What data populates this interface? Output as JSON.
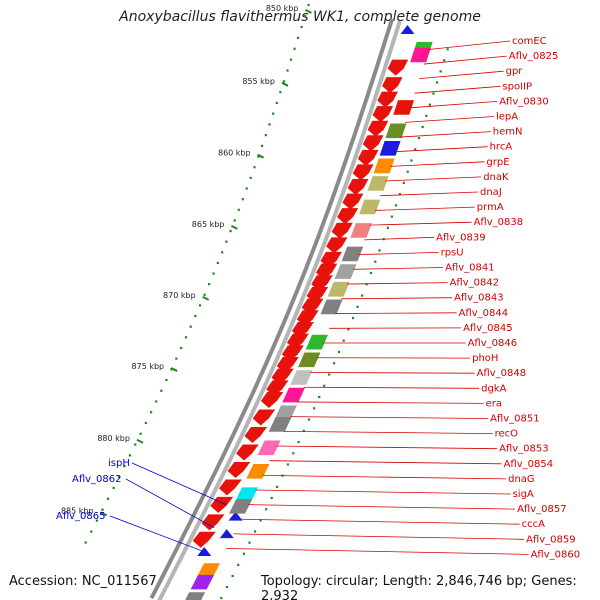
{
  "title": "Anoxybacillus flavithermus WK1, complete genome",
  "footer": {
    "accession": "Accession: NC_011567",
    "topology": "Topology: circular; Length: 2,846,746 bp; Genes: 2,932"
  },
  "colors": {
    "gene_forward": "#e8120c",
    "gene_reverse": "#1a1ae0",
    "label_right": "#d40000",
    "label_left": "#0000cc",
    "scale_dots": "#1a8a1a",
    "backbone": "#8a8a8a"
  },
  "scale_ticks": [
    "850 kbp",
    "855 kbp",
    "860 kbp",
    "865 kbp",
    "870 kbp",
    "875 kbp",
    "880 kbp",
    "885 kbp"
  ],
  "right_labels": [
    "comEC",
    "Aflv_0825",
    "gpr",
    "spoIIP",
    "Aflv_0830",
    "lepA",
    "hemN",
    "hrcA",
    "grpE",
    "dnaK",
    "dnaJ",
    "prmA",
    "Aflv_0838",
    "Aflv_0839",
    "rpsU",
    "Aflv_0841",
    "Aflv_0842",
    "Aflv_0843",
    "Aflv_0844",
    "Aflv_0845",
    "Aflv_0846",
    "phoH",
    "Aflv_0848",
    "dgkA",
    "era",
    "Aflv_0851",
    "recO",
    "Aflv_0853",
    "Aflv_0854",
    "dnaG",
    "sigA",
    "Aflv_0857",
    "cccA",
    "Aflv_0859",
    "Aflv_0860"
  ],
  "left_labels": [
    "ispH",
    "Aflv_0862",
    "Aflv_0865"
  ]
}
